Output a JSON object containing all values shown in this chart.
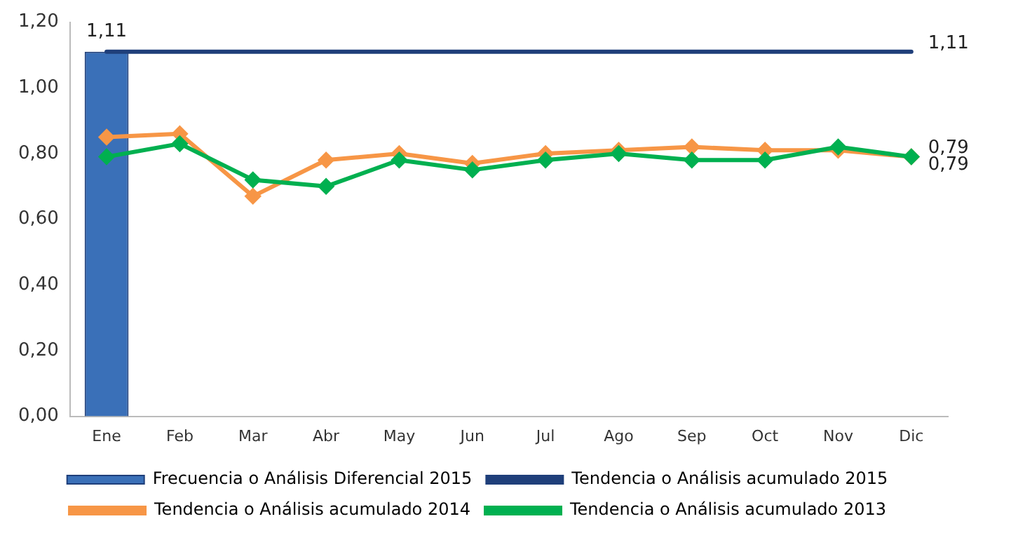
{
  "chart_data": {
    "type": "line",
    "categories": [
      "Ene",
      "Feb",
      "Mar",
      "Abr",
      "May",
      "Jun",
      "Jul",
      "Ago",
      "Sep",
      "Oct",
      "Nov",
      "Dic"
    ],
    "series": [
      {
        "name": "Frecuencia o Análisis Diferencial 2015",
        "type": "bar",
        "color": "#3a70b8",
        "values": [
          1.11,
          null,
          null,
          null,
          null,
          null,
          null,
          null,
          null,
          null,
          null,
          null
        ],
        "value_labels": [
          "1,11",
          null,
          null,
          null,
          null,
          null,
          null,
          null,
          null,
          null,
          null,
          null
        ]
      },
      {
        "name": "Tendencia o Análisis acumulado 2015",
        "color": "#1f3f7a",
        "marker": "none",
        "values": [
          1.11,
          1.11,
          1.11,
          1.11,
          1.11,
          1.11,
          1.11,
          1.11,
          1.11,
          1.11,
          1.11,
          1.11
        ],
        "value_labels": [
          null,
          null,
          null,
          null,
          null,
          null,
          null,
          null,
          null,
          null,
          null,
          "1,11"
        ]
      },
      {
        "name": "Tendencia o Análisis acumulado 2014",
        "color": "#f79646",
        "marker": "diamond",
        "values": [
          0.85,
          0.86,
          0.67,
          0.78,
          0.8,
          0.77,
          0.8,
          0.81,
          0.82,
          0.81,
          0.81,
          0.79
        ],
        "value_labels": [
          null,
          null,
          null,
          null,
          null,
          null,
          null,
          null,
          null,
          null,
          null,
          "0,79"
        ]
      },
      {
        "name": "Tendencia o Análisis acumulado 2013",
        "color": "#00b050",
        "marker": "diamond",
        "values": [
          0.79,
          0.83,
          0.72,
          0.7,
          0.78,
          0.75,
          0.78,
          0.8,
          0.78,
          0.78,
          0.82,
          0.79
        ],
        "value_labels": [
          null,
          null,
          null,
          null,
          null,
          null,
          null,
          null,
          null,
          null,
          null,
          "0,79"
        ]
      }
    ],
    "ylim": [
      0,
      1.2
    ],
    "yticks": [
      {
        "value": 0,
        "label": "0,00"
      },
      {
        "value": 0.2,
        "label": "0,20"
      },
      {
        "value": 0.4,
        "label": "0,40"
      },
      {
        "value": 0.6,
        "label": "0,60"
      },
      {
        "value": 0.8,
        "label": "0,80"
      },
      {
        "value": 1,
        "label": "1,00"
      },
      {
        "value": 1.2,
        "label": "1,20"
      }
    ],
    "grid": false,
    "legend": "bottom"
  }
}
